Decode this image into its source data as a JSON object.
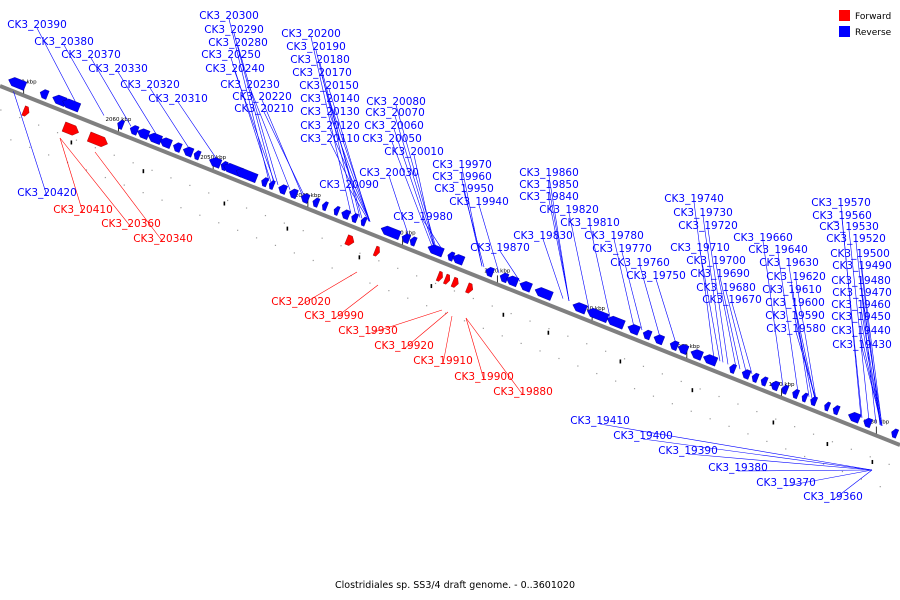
{
  "caption": "Clostridiales sp. SS3/4 draft genome. - 0..3601020",
  "legend": [
    {
      "label": "Forward",
      "color": "#ff0000"
    },
    {
      "label": "Reverse",
      "color": "#0000ff"
    }
  ],
  "axis": {
    "start_kbp": 2072.5,
    "end_kbp": 1977.5
  },
  "ticks": [
    "2070 kbp",
    "2060 kbp",
    "2050 kbp",
    "2040 kbp",
    "2030 kbp",
    "2020 kbp",
    "2010 kbp",
    "2000 kbp",
    "1990 kbp",
    "1980 kbp"
  ],
  "reverse_labels": [
    "CK3_20390",
    "CK3_20380",
    "CK3_20370",
    "CK3_20330",
    "CK3_20320",
    "CK3_20310",
    "CK3_20300",
    "CK3_20290",
    "CK3_20280",
    "CK3_20250",
    "CK3_20240",
    "CK3_20230",
    "CK3_20220",
    "CK3_20210",
    "CK3_20200",
    "CK3_20190",
    "CK3_20180",
    "CK3_20170",
    "CK3_20150",
    "CK3_20140",
    "CK3_20130",
    "CK3_20120",
    "CK3_20110",
    "CK3_20090",
    "CK3_20080",
    "CK3_20070",
    "CK3_20060",
    "CK3_20050",
    "CK3_20030",
    "CK3_20010",
    "CK3_19980",
    "CK3_19970",
    "CK3_19960",
    "CK3_19950",
    "CK3_19940",
    "CK3_19870",
    "CK3_19860",
    "CK3_19850",
    "CK3_19840",
    "CK3_19830",
    "CK3_19820",
    "CK3_19810",
    "CK3_19780",
    "CK3_19770",
    "CK3_19760",
    "CK3_19750",
    "CK3_19740",
    "CK3_19730",
    "CK3_19720",
    "CK3_19710",
    "CK3_19700",
    "CK3_19690",
    "CK3_19680",
    "CK3_19670",
    "CK3_19660",
    "CK3_19640",
    "CK3_19630",
    "CK3_19620",
    "CK3_19610",
    "CK3_19600",
    "CK3_19590",
    "CK3_19580",
    "CK3_19570",
    "CK3_19560",
    "CK3_19530",
    "CK3_19520",
    "CK3_19500",
    "CK3_19490",
    "CK3_19480",
    "CK3_19470",
    "CK3_19460",
    "CK3_19450",
    "CK3_19440",
    "CK3_19430"
  ],
  "lower_reverse_labels": [
    "CK3_20420",
    "CK3_19410",
    "CK3_19400",
    "CK3_19390",
    "CK3_19380",
    "CK3_19370",
    "CK3_19360"
  ],
  "forward_labels": [
    "CK3_20410",
    "CK3_20360",
    "CK3_20340",
    "CK3_20020",
    "CK3_19990",
    "CK3_19930",
    "CK3_19920",
    "CK3_19910",
    "CK3_19900",
    "CK3_19880"
  ]
}
